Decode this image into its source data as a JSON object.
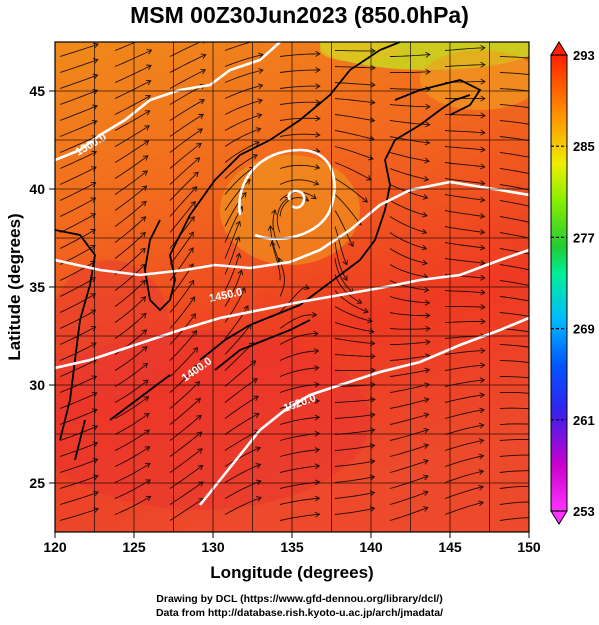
{
  "title": "MSM 00Z30Jun2023 (850.0hPa)",
  "credits": {
    "line1": "Drawing by DCL (https://www.gfd-dennou.org/library/dcl/)",
    "line2": "Data from http://database.rish.kyoto-u.ac.jp/arch/jmadata/"
  },
  "axes": {
    "xlabel": "Longitude (degrees)",
    "ylabel": "Latitude  (degrees)",
    "xlim": [
      120,
      150
    ],
    "ylim": [
      22.5,
      47.5
    ],
    "xticks": [
      120,
      125,
      130,
      135,
      140,
      145,
      150
    ],
    "yticks": [
      25,
      30,
      35,
      40,
      45
    ]
  },
  "colorbar": {
    "range": [
      253,
      293
    ],
    "ticks": [
      253,
      261,
      269,
      277,
      285,
      293
    ],
    "colors": [
      "#ff00ff",
      "#cc00cc",
      "#1a1aff",
      "#0088ff",
      "#00ccff",
      "#00ff99",
      "#22cc22",
      "#99ff00",
      "#ffff00",
      "#ff9900",
      "#ff3300"
    ]
  },
  "contours": [
    {
      "label": "1500.0"
    },
    {
      "label": "1450.0"
    },
    {
      "label": "1400.0"
    },
    {
      "label": "1520.0"
    }
  ]
}
